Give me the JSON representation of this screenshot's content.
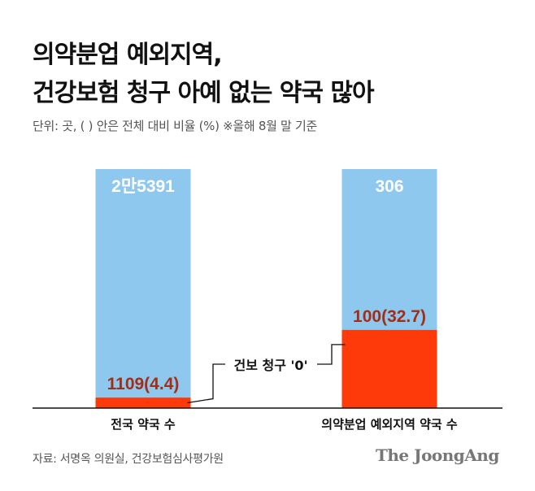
{
  "title_line1": "의약분업 예외지역,",
  "title_line2": "건강보험 청구 아예 없는 약국 많아",
  "subtitle": "단위: 곳, ( ) 안은 전체 대비 비율 (%) ※올해 8월 말 기준",
  "annotation": "건보 청구 '0'",
  "source": "자료: 서명옥 의원실, 건강보험심사평가원",
  "logo": "The JoongAng",
  "colors": {
    "total_bar": "#8ec8ee",
    "zero_claim_bar": "#ff3a0a",
    "zero_claim_label": "#a32e16",
    "total_label": "#ffffff"
  },
  "chart_data": {
    "type": "bar",
    "categories": [
      "전국 약국 수",
      "의약분업 예외지역 약국 수"
    ],
    "series": [
      {
        "values": [
          25391,
          306
        ],
        "labels": [
          "2만5391",
          "306"
        ]
      },
      {
        "values": [
          1109,
          100
        ],
        "percent": [
          4.4,
          32.7
        ],
        "labels": [
          "1109(4.4)",
          "100(32.7)"
        ]
      }
    ]
  }
}
